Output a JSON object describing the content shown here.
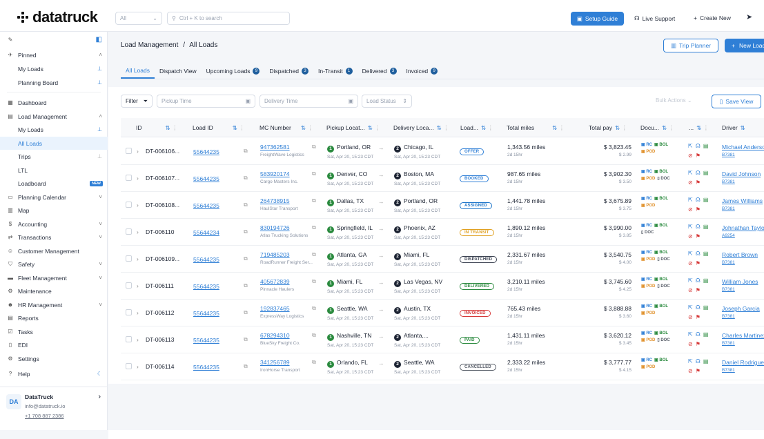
{
  "app": {
    "brand": "datatruck",
    "scope_select": "All",
    "search_placeholder": "Ctrl + K to search",
    "setup_guide": "Setup Guide",
    "live_support": "Live Support",
    "create_new": "Create New"
  },
  "sidebar": {
    "pinned": "Pinned",
    "my_loads": "My Loads",
    "planning_board": "Planning Board",
    "dashboard": "Dashboard",
    "load_management": "Load Management",
    "lm_my_loads": "My Loads",
    "all_loads": "All Loads",
    "trips": "Trips",
    "ltl": "LTL",
    "loadboard": "Loadboard",
    "new": "NEW",
    "planning_calendar": "Planning Calendar",
    "map": "Map",
    "accounting": "Accounting",
    "transactions": "Transactions",
    "customer_management": "Customer Management",
    "safety": "Safety",
    "fleet_management": "Fleet Management",
    "maintenance": "Maintenance",
    "hr_management": "HR Management",
    "reports": "Reports",
    "tasks": "Tasks",
    "edi": "EDI",
    "settings": "Settings",
    "help": "Help"
  },
  "account": {
    "initials": "DA",
    "name": "DataTruck",
    "email": "info@datatruck.io",
    "phone": "+1 708 887 2386"
  },
  "header": {
    "breadcrumb_parent": "Load Management",
    "breadcrumb_sep": "/",
    "breadcrumb_current": "All Loads",
    "trip_planner": "Trip Planner",
    "new_load": "New Load"
  },
  "tabs": [
    {
      "label": "All Loads"
    },
    {
      "label": "Dispatch View"
    },
    {
      "label": "Upcoming Loads",
      "count": "9"
    },
    {
      "label": "Dispatched",
      "count": "3"
    },
    {
      "label": "In-Transit",
      "count": "1"
    },
    {
      "label": "Delivered",
      "count": "3"
    },
    {
      "label": "Invoiced",
      "count": "9"
    }
  ],
  "filters": {
    "filter": "Filter",
    "pickup_time": "Pickup Time",
    "delivery_time": "Delivery Time",
    "load_status": "Load Status",
    "bulk_actions": "Bulk Actions",
    "save_view": "Save View"
  },
  "columns": {
    "id": "ID",
    "load_id": "Load ID",
    "mc_number": "MC Number",
    "pickup": "Pickup Locat...",
    "delivery": "Delivery Loca...",
    "load": "Load...",
    "total_miles": "Total miles",
    "total_pay": "Total pay",
    "docs": "Docu...",
    "actions": "...",
    "driver": "Driver"
  },
  "rows": [
    {
      "id": "DT-006106...",
      "load_id": "55644235",
      "mc": "947362581",
      "company": "FreightWave Logistics",
      "pickup": "Portland, OR",
      "pickup_time": "Sat, Apr 20, 15:23 CDT",
      "delivery": "Chicago, IL",
      "delivery_time": "Sat, Apr 20, 15:23 CDT",
      "status": "OFFER",
      "status_color": "#2f7fd6",
      "miles": "1,343.56 miles",
      "dur": "2d 15hr",
      "pay": "$ 3,823.45",
      "pay_sub": "$ 2.99",
      "docs": [
        "RC",
        "BOL",
        "POD"
      ],
      "driver": "Michael Anderson",
      "driver_id": "B7381"
    },
    {
      "id": "DT-006107...",
      "load_id": "55644235",
      "mc": "583920174",
      "company": "Cargo Masters Inc.",
      "pickup": "Denver, CO",
      "pickup_time": "Sat, Apr 20, 15:23 CDT",
      "delivery": "Boston, MA",
      "delivery_time": "Sat, Apr 20, 15:23 CDT",
      "status": "BOOKED",
      "status_color": "#2f7fd6",
      "miles": "987.65 miles",
      "dur": "2d 15hr",
      "pay": "$ 3,902.30",
      "pay_sub": "$ 3.50",
      "docs": [
        "RC",
        "BOL",
        "POD",
        "DOC"
      ],
      "driver": "David Johnson",
      "driver_id": "B7381"
    },
    {
      "id": "DT-006108...",
      "load_id": "55644235",
      "mc": "264738915",
      "company": "HaulStar Transport",
      "pickup": "Dallas, TX",
      "pickup_time": "Sat, Apr 20, 15:23 CDT",
      "delivery": "Portland, OR",
      "delivery_time": "Sat, Apr 20, 15:23 CDT",
      "status": "ASSIGNED",
      "status_color": "#1a73c9",
      "miles": "1,441.78 miles",
      "dur": "2d 15hr",
      "pay": "$ 3,675.89",
      "pay_sub": "$ 3.75",
      "docs": [
        "RC",
        "BOL",
        "POD"
      ],
      "driver": "James Williams",
      "driver_id": "B7381"
    },
    {
      "id": "DT-006110",
      "load_id": "55644234",
      "mc": "830194726",
      "company": "Atlas Trucking Solutions",
      "pickup": "Springfield, IL",
      "pickup_time": "Sat, Apr 20, 15:23 CDT",
      "delivery": "Phoenix, AZ",
      "delivery_time": "Sat, Apr 20, 15:23 CDT",
      "status": "IN TRANSIT",
      "status_color": "#e0a020",
      "miles": "1,890.12 miles",
      "dur": "2d 15hr",
      "pay": "$ 3,990.00",
      "pay_sub": "$ 3.85",
      "docs": [
        "RC",
        "BOL",
        "DOC"
      ],
      "driver": "Johnathan Taylor",
      "driver_id": "A9254"
    },
    {
      "id": "DT-006109...",
      "load_id": "55644235",
      "mc": "719485203",
      "company": "RoadRunner Freight Ser...",
      "pickup": "Atlanta, GA",
      "pickup_time": "Sat, Apr 20, 15:23 CDT",
      "delivery": "Miami, FL",
      "delivery_time": "Sat, Apr 20, 15:23 CDT",
      "status": "DISPATCHED",
      "status_color": "#3a4150",
      "miles": "2,331.67 miles",
      "dur": "2d 15hr",
      "pay": "$ 3,540.75",
      "pay_sub": "$ 4.00",
      "docs": [
        "RC",
        "BOL",
        "POD",
        "DOC"
      ],
      "driver": "Robert Brown",
      "driver_id": "B7381"
    },
    {
      "id": "DT-006111",
      "load_id": "55644235",
      "mc": "405672839",
      "company": "Pinnacle Haulers",
      "pickup": "Miami, FL",
      "pickup_time": "Sat, Apr 20, 15:23 CDT",
      "delivery": "Las Vegas, NV",
      "delivery_time": "Sat, Apr 20, 15:23 CDT",
      "status": "DELIVERED",
      "status_color": "#2a8a3e",
      "miles": "3,210.11 miles",
      "dur": "2d 15hr",
      "pay": "$ 3,745.60",
      "pay_sub": "$ 4.25",
      "docs": [
        "RC",
        "BOL",
        "POD",
        "DOC"
      ],
      "driver": "William Jones",
      "driver_id": "B7381"
    },
    {
      "id": "DT-006112",
      "load_id": "55644235",
      "mc": "192837465",
      "company": "ExpressWay Logistics",
      "pickup": "Seattle, WA",
      "pickup_time": "Sat, Apr 20, 15:23 CDT",
      "delivery": "Austin, TX",
      "delivery_time": "Sat, Apr 20, 15:23 CDT",
      "status": "INVOICED",
      "status_color": "#d63a3a",
      "miles": "765.43 miles",
      "dur": "2d 15hr",
      "pay": "$ 3,888.88",
      "pay_sub": "$ 3.60",
      "docs": [
        "RC",
        "BOL",
        "POD"
      ],
      "driver": "Joseph Garcia",
      "driver_id": "B7381"
    },
    {
      "id": "DT-006113",
      "load_id": "55644235",
      "mc": "678294310",
      "company": "BlueSky Freight Co.",
      "pickup": "Nashville, TN",
      "pickup_time": "Sat, Apr 20, 15:23 CDT",
      "delivery": "Atlanta,...",
      "delivery_time": "Sat, Apr 20, 15:23 CDT",
      "status": "PAID",
      "status_color": "#2a8a3e",
      "miles": "1,431.11 miles",
      "dur": "2d 15hr",
      "pay": "$ 3,620.12",
      "pay_sub": "$ 3.45",
      "docs": [
        "RC",
        "BOL",
        "POD",
        "DOC"
      ],
      "driver": "Charles Martinez",
      "driver_id": "B7381"
    },
    {
      "id": "DT-006114",
      "load_id": "55644235",
      "mc": "341256789",
      "company": "IronHorse Transport",
      "pickup": "Orlando, FL",
      "pickup_time": "Sat, Apr 20, 15:23 CDT",
      "delivery": "Seattle, WA",
      "delivery_time": "Sat, Apr 20, 15:23 CDT",
      "status": "CANCELLED",
      "status_color": "#555b66",
      "miles": "2,333.22 miles",
      "dur": "2d 15hr",
      "pay": "$ 3,777.77",
      "pay_sub": "$ 4.15",
      "docs": [
        "RC",
        "BOL",
        "POD"
      ],
      "driver": "Daniel Rodriguez",
      "driver_id": "B7381"
    }
  ],
  "colors": {
    "accent": "#2f7fd6",
    "rc": "#2f7fd6",
    "bol": "#2a8a3e",
    "pod": "#e0902a",
    "doc": "#555b66"
  }
}
